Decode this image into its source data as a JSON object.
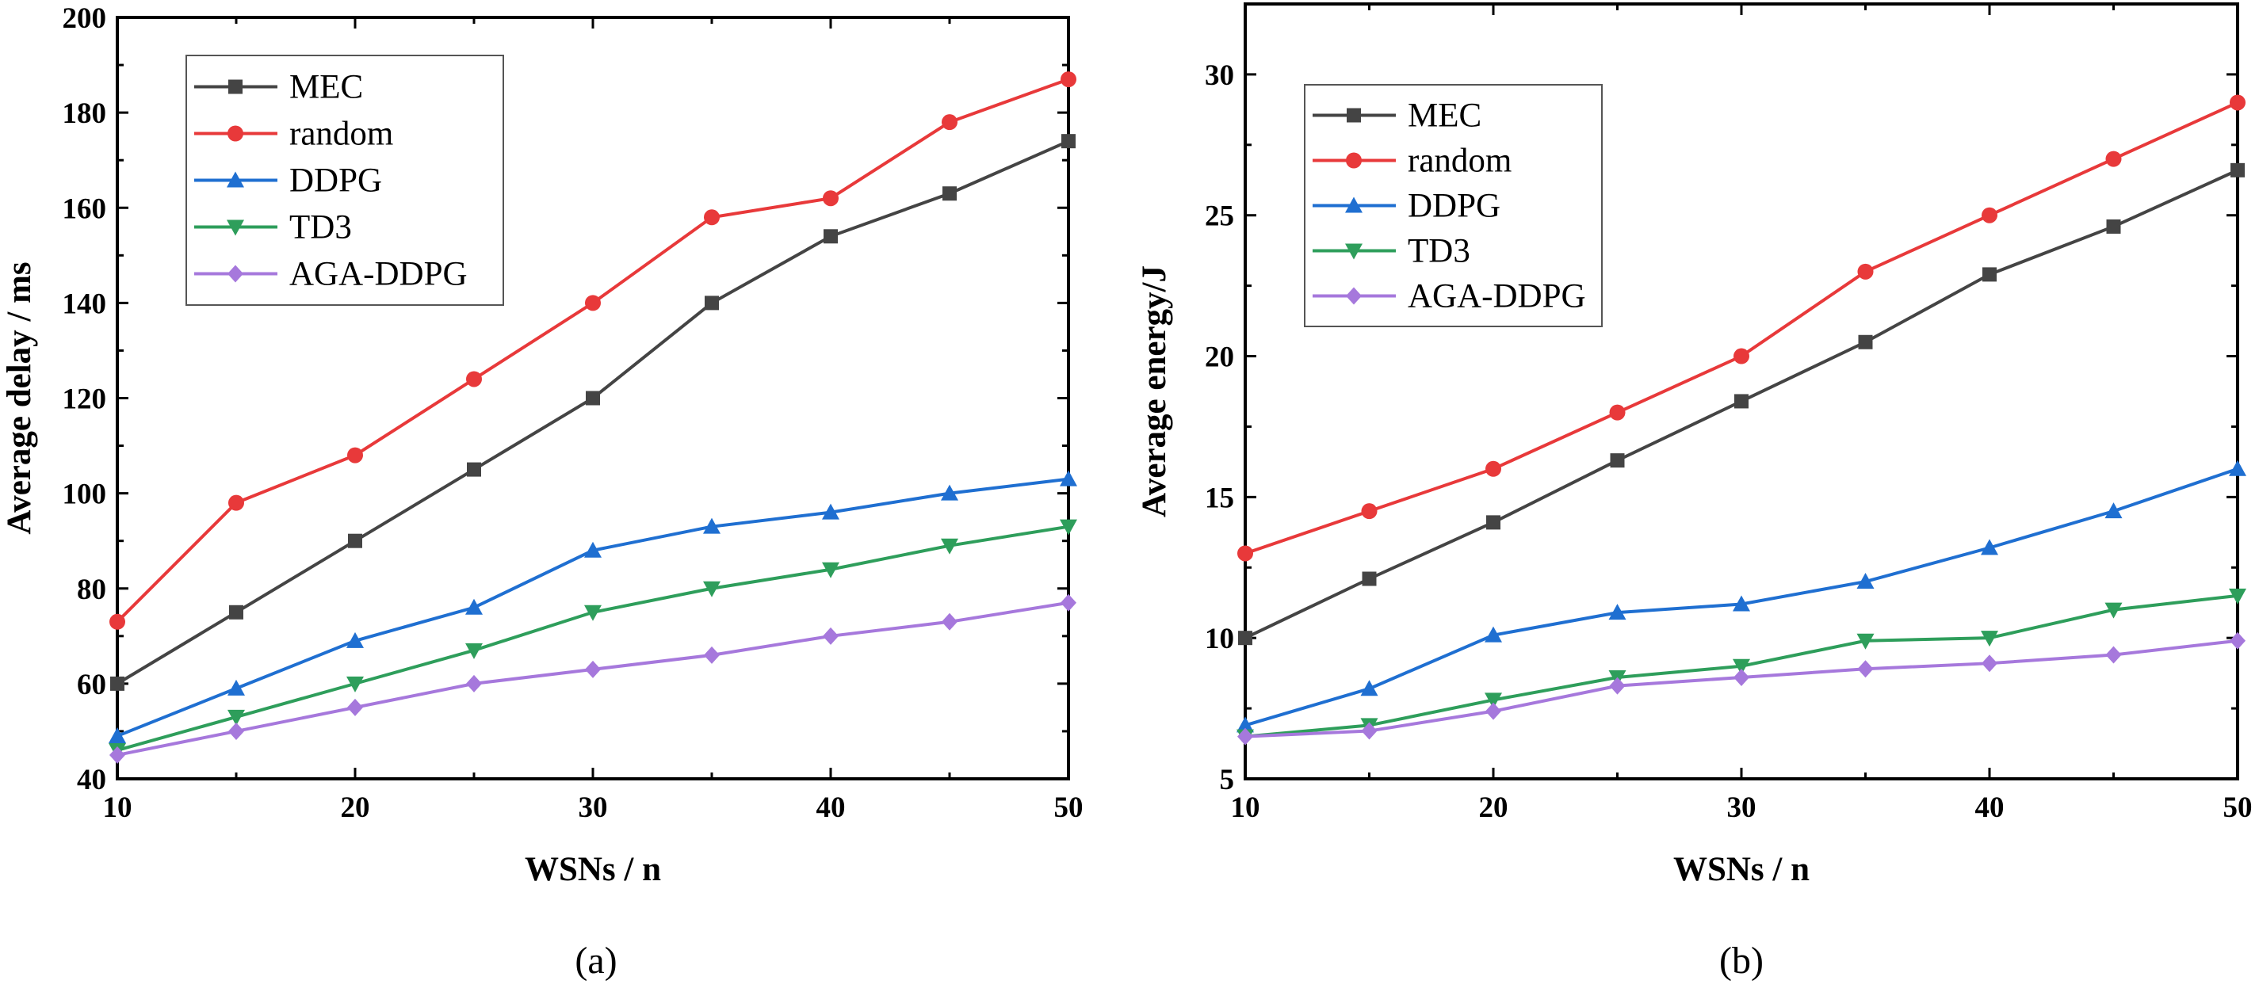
{
  "chart_data": [
    {
      "type": "line",
      "panel": "(a)",
      "xlabel": "WSNs / n",
      "ylabel": "Average delay / ms",
      "xlim": [
        10,
        50
      ],
      "ylim": [
        40,
        200
      ],
      "xticks": [
        10,
        20,
        30,
        40,
        50
      ],
      "yticks": [
        40,
        60,
        80,
        100,
        120,
        140,
        160,
        180,
        200
      ],
      "legend_position": "top-left",
      "grid": false,
      "x": [
        10,
        15,
        20,
        25,
        30,
        35,
        40,
        45,
        50
      ],
      "series": [
        {
          "name": "MEC",
          "color": "#444444",
          "marker": "square",
          "values": [
            60,
            75,
            90,
            105,
            120,
            140,
            154,
            163,
            174
          ]
        },
        {
          "name": "random",
          "color": "#e8393a",
          "marker": "circle",
          "values": [
            73,
            98,
            108,
            124,
            140,
            158,
            162,
            178,
            187
          ]
        },
        {
          "name": "DDPG",
          "color": "#1f6fd1",
          "marker": "triangle-up",
          "values": [
            49,
            59,
            69,
            76,
            88,
            93,
            96,
            100,
            103
          ]
        },
        {
          "name": "TD3",
          "color": "#2e9e5b",
          "marker": "triangle-down",
          "values": [
            46,
            53,
            60,
            67,
            75,
            80,
            84,
            89,
            93
          ]
        },
        {
          "name": "AGA-DDPG",
          "color": "#a678dc",
          "marker": "diamond",
          "values": [
            45,
            50,
            55,
            60,
            63,
            66,
            70,
            73,
            77
          ]
        }
      ]
    },
    {
      "type": "line",
      "panel": "(b)",
      "xlabel": "WSNs / n",
      "ylabel": "Average energy/J",
      "xlim": [
        10,
        50
      ],
      "ylim": [
        5,
        32.5
      ],
      "xticks": [
        10,
        20,
        30,
        40,
        50
      ],
      "yticks": [
        5,
        10,
        15,
        20,
        25,
        30
      ],
      "legend_position": "top-left",
      "grid": false,
      "x": [
        10,
        15,
        20,
        25,
        30,
        35,
        40,
        45,
        50
      ],
      "series": [
        {
          "name": "MEC",
          "color": "#444444",
          "marker": "square",
          "values": [
            10,
            12.1,
            14.1,
            16.3,
            18.4,
            20.5,
            22.9,
            24.6,
            26.6
          ]
        },
        {
          "name": "random",
          "color": "#e8393a",
          "marker": "circle",
          "values": [
            13,
            14.5,
            16,
            18,
            20,
            23,
            25,
            27,
            29
          ]
        },
        {
          "name": "DDPG",
          "color": "#1f6fd1",
          "marker": "triangle-up",
          "values": [
            6.9,
            8.2,
            10.1,
            10.9,
            11.2,
            12,
            13.2,
            14.5,
            16
          ]
        },
        {
          "name": "TD3",
          "color": "#2e9e5b",
          "marker": "triangle-down",
          "values": [
            6.5,
            6.9,
            7.8,
            8.6,
            9,
            9.9,
            10,
            11,
            11.5
          ]
        },
        {
          "name": "AGA-DDPG",
          "color": "#a678dc",
          "marker": "diamond",
          "values": [
            6.5,
            6.7,
            7.4,
            8.3,
            8.6,
            8.9,
            9.1,
            9.4,
            9.9
          ]
        }
      ]
    }
  ]
}
